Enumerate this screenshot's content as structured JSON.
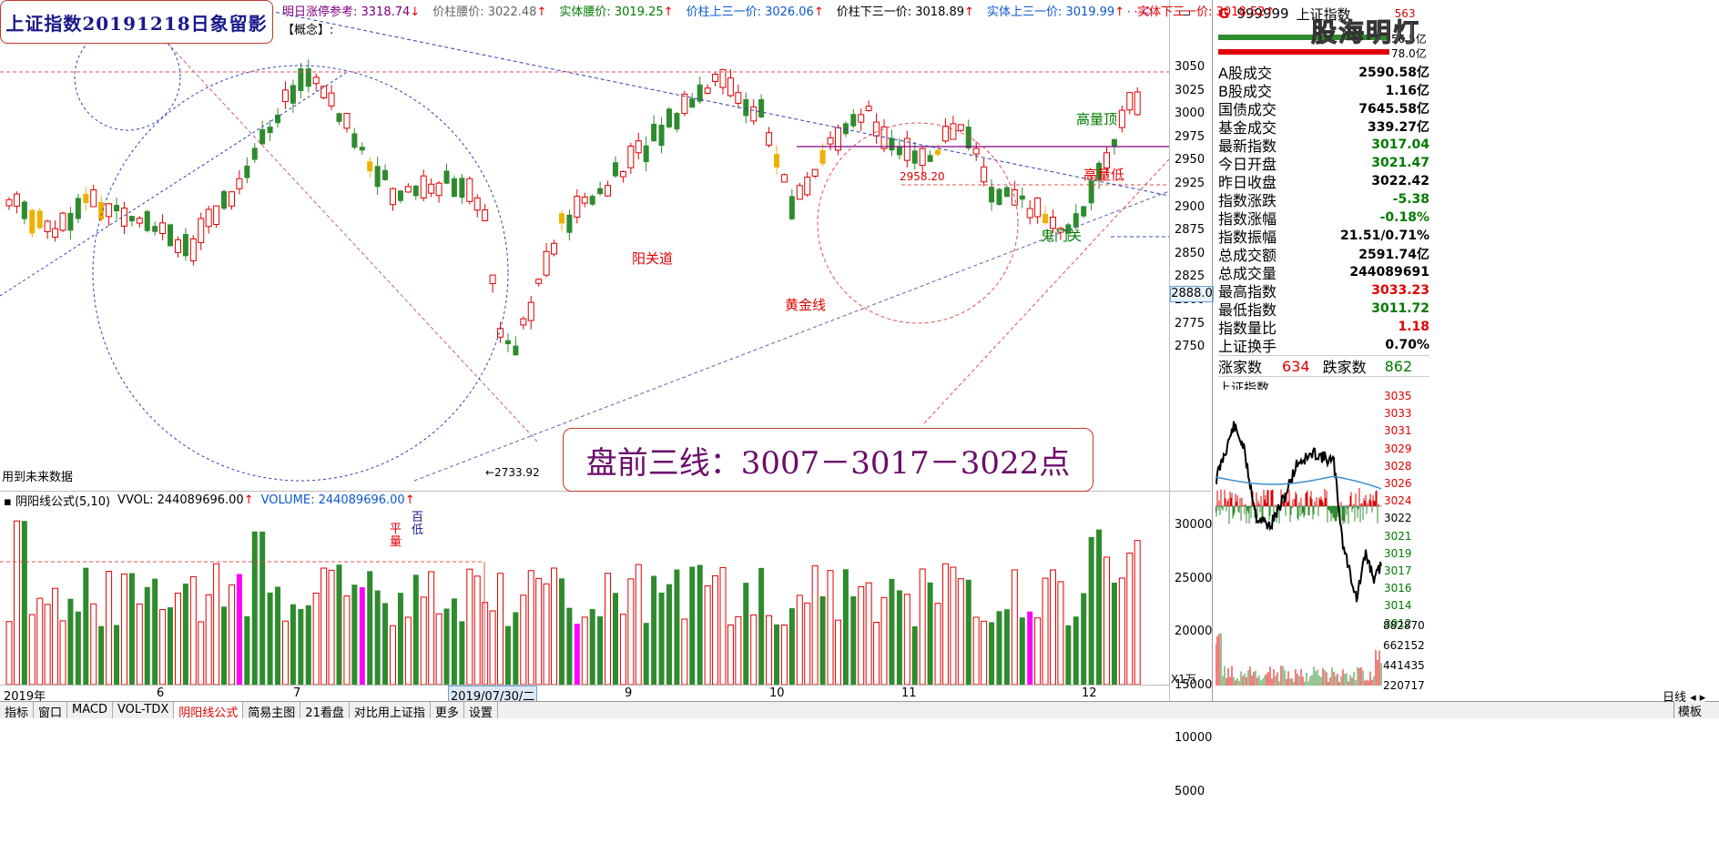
{
  "title_box": "上证指数20191218日象留影",
  "info_bar": [
    {
      "label": "明日涨停参考:",
      "value": "3318.74",
      "color": "purple",
      "arrow": "↓"
    },
    {
      "label": "价柱腰价:",
      "value": "3022.48",
      "color": "gray",
      "arrow": "↑"
    },
    {
      "label": "实体腰价:",
      "value": "3019.25",
      "color": "green",
      "arrow": "↑"
    },
    {
      "label": "价柱上三一价:",
      "value": "3026.06",
      "color": "blue",
      "arrow": "↑"
    },
    {
      "label": "价柱下三一价:",
      "value": "3018.89",
      "color": "black",
      "arrow": "↑"
    },
    {
      "label": "实体上三一价:",
      "value": "3019.99",
      "color": "blue",
      "arrow": "↑"
    },
    {
      "label": "实体下三一价:",
      "value": "3018.52",
      "color": "red",
      "arrow": "↑"
    }
  ],
  "concept": "【概念】:",
  "future_data": "用到未来数据",
  "signal_text": "盘前三线：3007－3017－3022点",
  "annotations": {
    "high_volume_top": "高量顶",
    "high_volume_low": "高量低",
    "ghost_gate": "鬼门关",
    "yang_pass": "阳关道",
    "golden_line": "黄金线",
    "low_point": "←2733.92",
    "level_2958": "2958.20",
    "vol_marks": [
      "平",
      "量",
      "百",
      "低"
    ]
  },
  "price_axis": [
    "3050",
    "3025",
    "3000",
    "2975",
    "2950",
    "2925",
    "2900",
    "2875",
    "2850",
    "2825",
    "2800",
    "2775",
    "2750"
  ],
  "price_tag": "2888.0",
  "vol_header": {
    "indicator": "阴阳线公式(5,10)",
    "vvol": "VVOL: 244089696.00",
    "vvol_arrow": "↑",
    "volume": "VOLUME: 244089696.00",
    "volume_arrow": "↑"
  },
  "vol_axis": [
    "30000",
    "25000",
    "20000",
    "15000",
    "10000",
    "5000"
  ],
  "vol_unit": "X1万",
  "date_labels": [
    "2019年",
    "6",
    "7",
    "2019/07/30/二",
    "9",
    "10",
    "11",
    "12"
  ],
  "tabs": [
    "指标",
    "窗口",
    "MACD",
    "VOL-TDX",
    "阴阳线公式",
    "简易主图",
    "21看盘",
    "对比用上证指",
    "更多",
    "设置"
  ],
  "active_tab": "阴阳线公式",
  "right_tab": "日线",
  "template_btn": "模板",
  "stock": {
    "market": "G",
    "code": "999999",
    "name": "上证指数",
    "count": "563"
  },
  "watermark": "股海明灯",
  "amounts": [
    "56.5亿",
    "78.0亿"
  ],
  "stats": [
    {
      "label": "A股成交",
      "value": "2590.58亿",
      "color": "black"
    },
    {
      "label": "B股成交",
      "value": "1.16亿",
      "color": "black"
    },
    {
      "label": "国债成交",
      "value": "7645.58亿",
      "color": "black"
    },
    {
      "label": "基金成交",
      "value": "339.27亿",
      "color": "black"
    },
    {
      "label": "最新指数",
      "value": "3017.04",
      "color": "green"
    },
    {
      "label": "今日开盘",
      "value": "3021.47",
      "color": "green"
    },
    {
      "label": "昨日收盘",
      "value": "3022.42",
      "color": "black"
    },
    {
      "label": "指数涨跌",
      "value": "-5.38",
      "color": "green"
    },
    {
      "label": "指数涨幅",
      "value": "-0.18%",
      "color": "green"
    },
    {
      "label": "指数振幅",
      "value": "21.51/0.71%",
      "color": "black"
    },
    {
      "label": "总成交额",
      "value": "2591.74亿",
      "color": "black"
    },
    {
      "label": "总成交量",
      "value": "244089691",
      "color": "black"
    },
    {
      "label": "最高指数",
      "value": "3033.23",
      "color": "red"
    },
    {
      "label": "最低指数",
      "value": "3011.72",
      "color": "green"
    },
    {
      "label": "指数量比",
      "value": "1.18",
      "color": "red"
    },
    {
      "label": "上证换手",
      "value": "0.70%",
      "color": "black"
    }
  ],
  "updown": {
    "up_label": "涨家数",
    "up_value": "634",
    "down_label": "跌家数",
    "down_value": "862"
  },
  "mini_title": "上证指数",
  "mini_price_axis": [
    "3035",
    "3033",
    "3031",
    "3029",
    "3028",
    "3026",
    "3024",
    "3022",
    "3021",
    "3019",
    "3017",
    "3016",
    "3014",
    "3012"
  ],
  "mini_vol_axis": [
    "882870",
    "662152",
    "441435",
    "220717"
  ],
  "colors": {
    "up": "#e00000",
    "down": "#2e8b2e",
    "yellow": "#f0b000",
    "magenta": "#ff00ff",
    "bg": "#ffffff"
  }
}
